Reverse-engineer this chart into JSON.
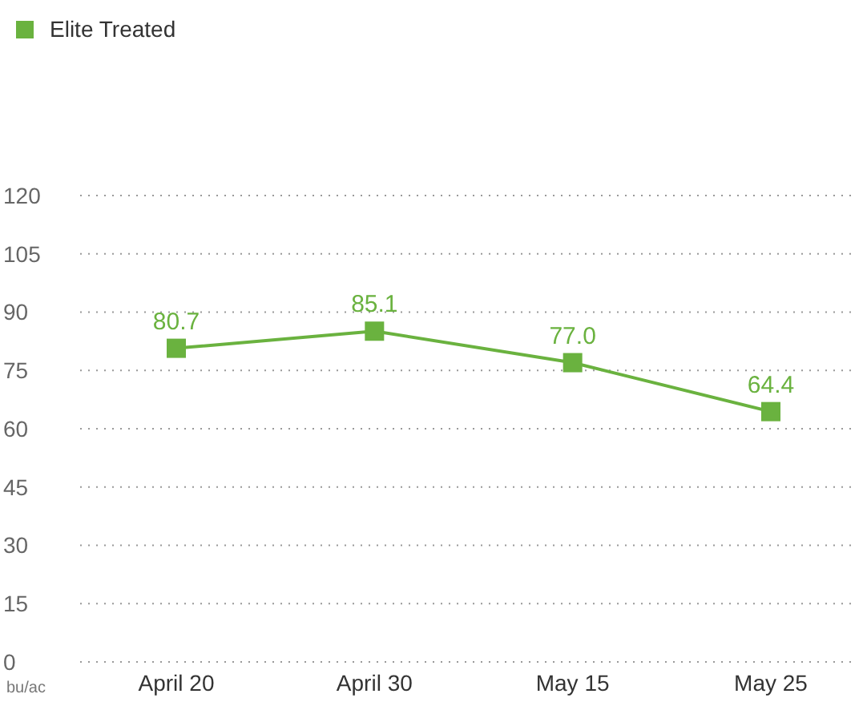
{
  "chart_data": {
    "type": "line",
    "categories": [
      "April 20",
      "April 30",
      "May 15",
      "May 25"
    ],
    "series": [
      {
        "name": "Elite Treated",
        "color": "#6ab23f",
        "values": [
          80.7,
          85.1,
          77.0,
          64.4
        ]
      }
    ],
    "ylim": [
      0,
      120
    ],
    "yticks": [
      0,
      15,
      30,
      45,
      60,
      75,
      90,
      105,
      120
    ],
    "grid": "y",
    "legend": "top left",
    "marker": "square",
    "line_style": "solid",
    "value_labels": [
      [
        "80.7",
        "85.1",
        "77.0",
        "64.4"
      ]
    ],
    "annotations": [
      "bu/ac"
    ]
  }
}
